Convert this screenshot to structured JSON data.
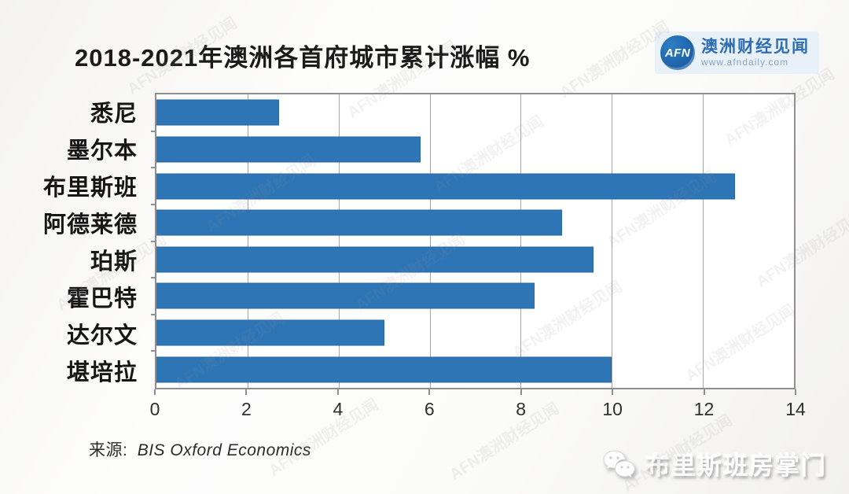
{
  "page": {
    "title": "2018-2021年澳洲各首府城市累计涨幅 %",
    "source_prefix": "来源:",
    "source_name": "BIS Oxford Economics"
  },
  "logo": {
    "abbr": "AFN",
    "name": "澳洲财经见闻",
    "url": "www.afndaily.com"
  },
  "watermark": {
    "bottom_right_text": "布里斯班房掌门",
    "diagonal_text": "AFN澳洲财经见闻"
  },
  "chart_data": {
    "type": "bar",
    "orientation": "horizontal",
    "title": "2018-2021年澳洲各首府城市累计涨幅 %",
    "categories": [
      "悉尼",
      "墨尔本",
      "布里斯班",
      "阿德莱德",
      "珀斯",
      "霍巴特",
      "达尔文",
      "堪培拉"
    ],
    "values": [
      2.7,
      5.8,
      12.7,
      8.9,
      9.6,
      8.3,
      5.0,
      10.0
    ],
    "xlabel": "",
    "ylabel": "",
    "xlim": [
      0,
      14
    ],
    "xticks": [
      0,
      2,
      4,
      6,
      8,
      10,
      12,
      14
    ],
    "grid": true,
    "legend": false,
    "bar_color": "#2E75B6",
    "source": "BIS Oxford Economics"
  },
  "colors": {
    "bar": "#2E75B6",
    "bar_border": "#2767a3",
    "frame_border": "#8f8f8f",
    "gridline": "#a6a6a6",
    "logo_circle": "#1b5fa6",
    "logo_name": "#2e6db4",
    "logo_bg": "#e9f1f8"
  }
}
